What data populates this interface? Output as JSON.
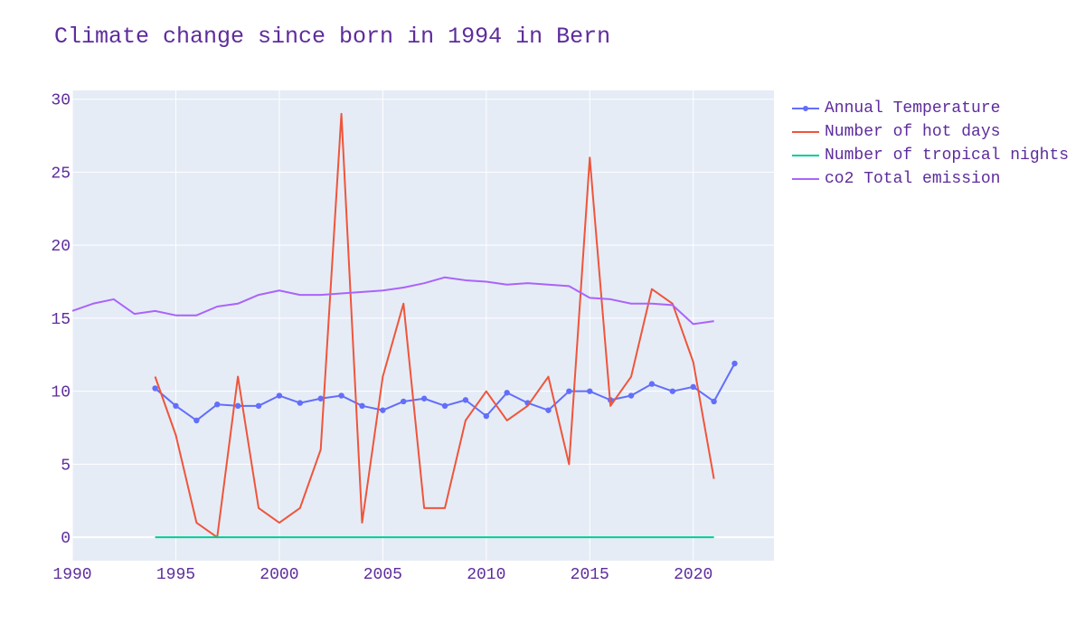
{
  "title": "Climate change since born in 1994 in Bern",
  "colors": {
    "text": "#5d2c9c",
    "plot_bg": "#e5ecf6",
    "grid": "#ffffff"
  },
  "legend": {
    "placement": "right",
    "items": [
      {
        "series_index": 0,
        "label": "Annual Temperature"
      },
      {
        "series_index": 1,
        "label": "Number of hot days"
      },
      {
        "series_index": 2,
        "label": "Number of tropical nights"
      },
      {
        "series_index": 3,
        "label": "co2 Total emission"
      }
    ]
  },
  "chart_data": {
    "type": "line",
    "title": "Climate change since born in 1994 in Bern",
    "xlabel": "",
    "ylabel": "",
    "xlim": [
      1990,
      2023.9
    ],
    "ylim": [
      -1.6,
      30.6
    ],
    "xticks": [
      1990,
      1995,
      2000,
      2005,
      2010,
      2015,
      2020
    ],
    "yticks": [
      0,
      5,
      10,
      15,
      20,
      25,
      30
    ],
    "grid": true,
    "legend_placement": "right",
    "series": [
      {
        "name": "Annual Temperature",
        "color": "#636efa",
        "markers": true,
        "x": [
          1994,
          1995,
          1996,
          1997,
          1998,
          1999,
          2000,
          2001,
          2002,
          2003,
          2004,
          2005,
          2006,
          2007,
          2008,
          2009,
          2010,
          2011,
          2012,
          2013,
          2014,
          2015,
          2016,
          2017,
          2018,
          2019,
          2020,
          2021,
          2022
        ],
        "y": [
          10.2,
          9.0,
          8.0,
          9.1,
          9.0,
          9.0,
          9.7,
          9.2,
          9.5,
          9.7,
          9.0,
          8.7,
          9.3,
          9.5,
          9.0,
          9.4,
          8.3,
          9.9,
          9.2,
          8.7,
          10.0,
          10.0,
          9.4,
          9.7,
          10.5,
          10.0,
          10.3,
          9.3,
          11.9
        ]
      },
      {
        "name": "Number of hot days",
        "color": "#ef553b",
        "markers": false,
        "x": [
          1994,
          1995,
          1996,
          1997,
          1998,
          1999,
          2000,
          2001,
          2002,
          2003,
          2004,
          2005,
          2006,
          2007,
          2008,
          2009,
          2010,
          2011,
          2012,
          2013,
          2014,
          2015,
          2016,
          2017,
          2018,
          2019,
          2020,
          2021
        ],
        "y": [
          11,
          7,
          1,
          0,
          11,
          2,
          1,
          2,
          6,
          29,
          1,
          11,
          16,
          2,
          2,
          8,
          10,
          8,
          9,
          11,
          5,
          26,
          9,
          11,
          17,
          16,
          12,
          4
        ]
      },
      {
        "name": "Number of tropical nights",
        "color": "#00cc96",
        "markers": false,
        "x": [
          1994,
          1995,
          1996,
          1997,
          1998,
          1999,
          2000,
          2001,
          2002,
          2003,
          2004,
          2005,
          2006,
          2007,
          2008,
          2009,
          2010,
          2011,
          2012,
          2013,
          2014,
          2015,
          2016,
          2017,
          2018,
          2019,
          2020,
          2021
        ],
        "y": [
          0,
          0,
          0,
          0,
          0,
          0,
          0,
          0,
          0,
          0,
          0,
          0,
          0,
          0,
          0,
          0,
          0,
          0,
          0,
          0,
          0,
          0,
          0,
          0,
          0,
          0,
          0,
          0
        ]
      },
      {
        "name": "co2 Total emission",
        "color": "#ab63fa",
        "markers": false,
        "x": [
          1990,
          1991,
          1992,
          1993,
          1994,
          1995,
          1996,
          1997,
          1998,
          1999,
          2000,
          2001,
          2002,
          2003,
          2004,
          2005,
          2006,
          2007,
          2008,
          2009,
          2010,
          2011,
          2012,
          2013,
          2014,
          2015,
          2016,
          2017,
          2018,
          2019,
          2020,
          2021
        ],
        "y": [
          15.5,
          16.0,
          16.3,
          15.3,
          15.5,
          15.2,
          15.2,
          15.8,
          16.0,
          16.6,
          16.9,
          16.6,
          16.6,
          16.7,
          16.8,
          16.9,
          17.1,
          17.4,
          17.8,
          17.6,
          17.5,
          17.3,
          17.4,
          17.3,
          17.2,
          16.4,
          16.3,
          16.0,
          16.0,
          15.9,
          14.6,
          14.8
        ]
      }
    ]
  }
}
